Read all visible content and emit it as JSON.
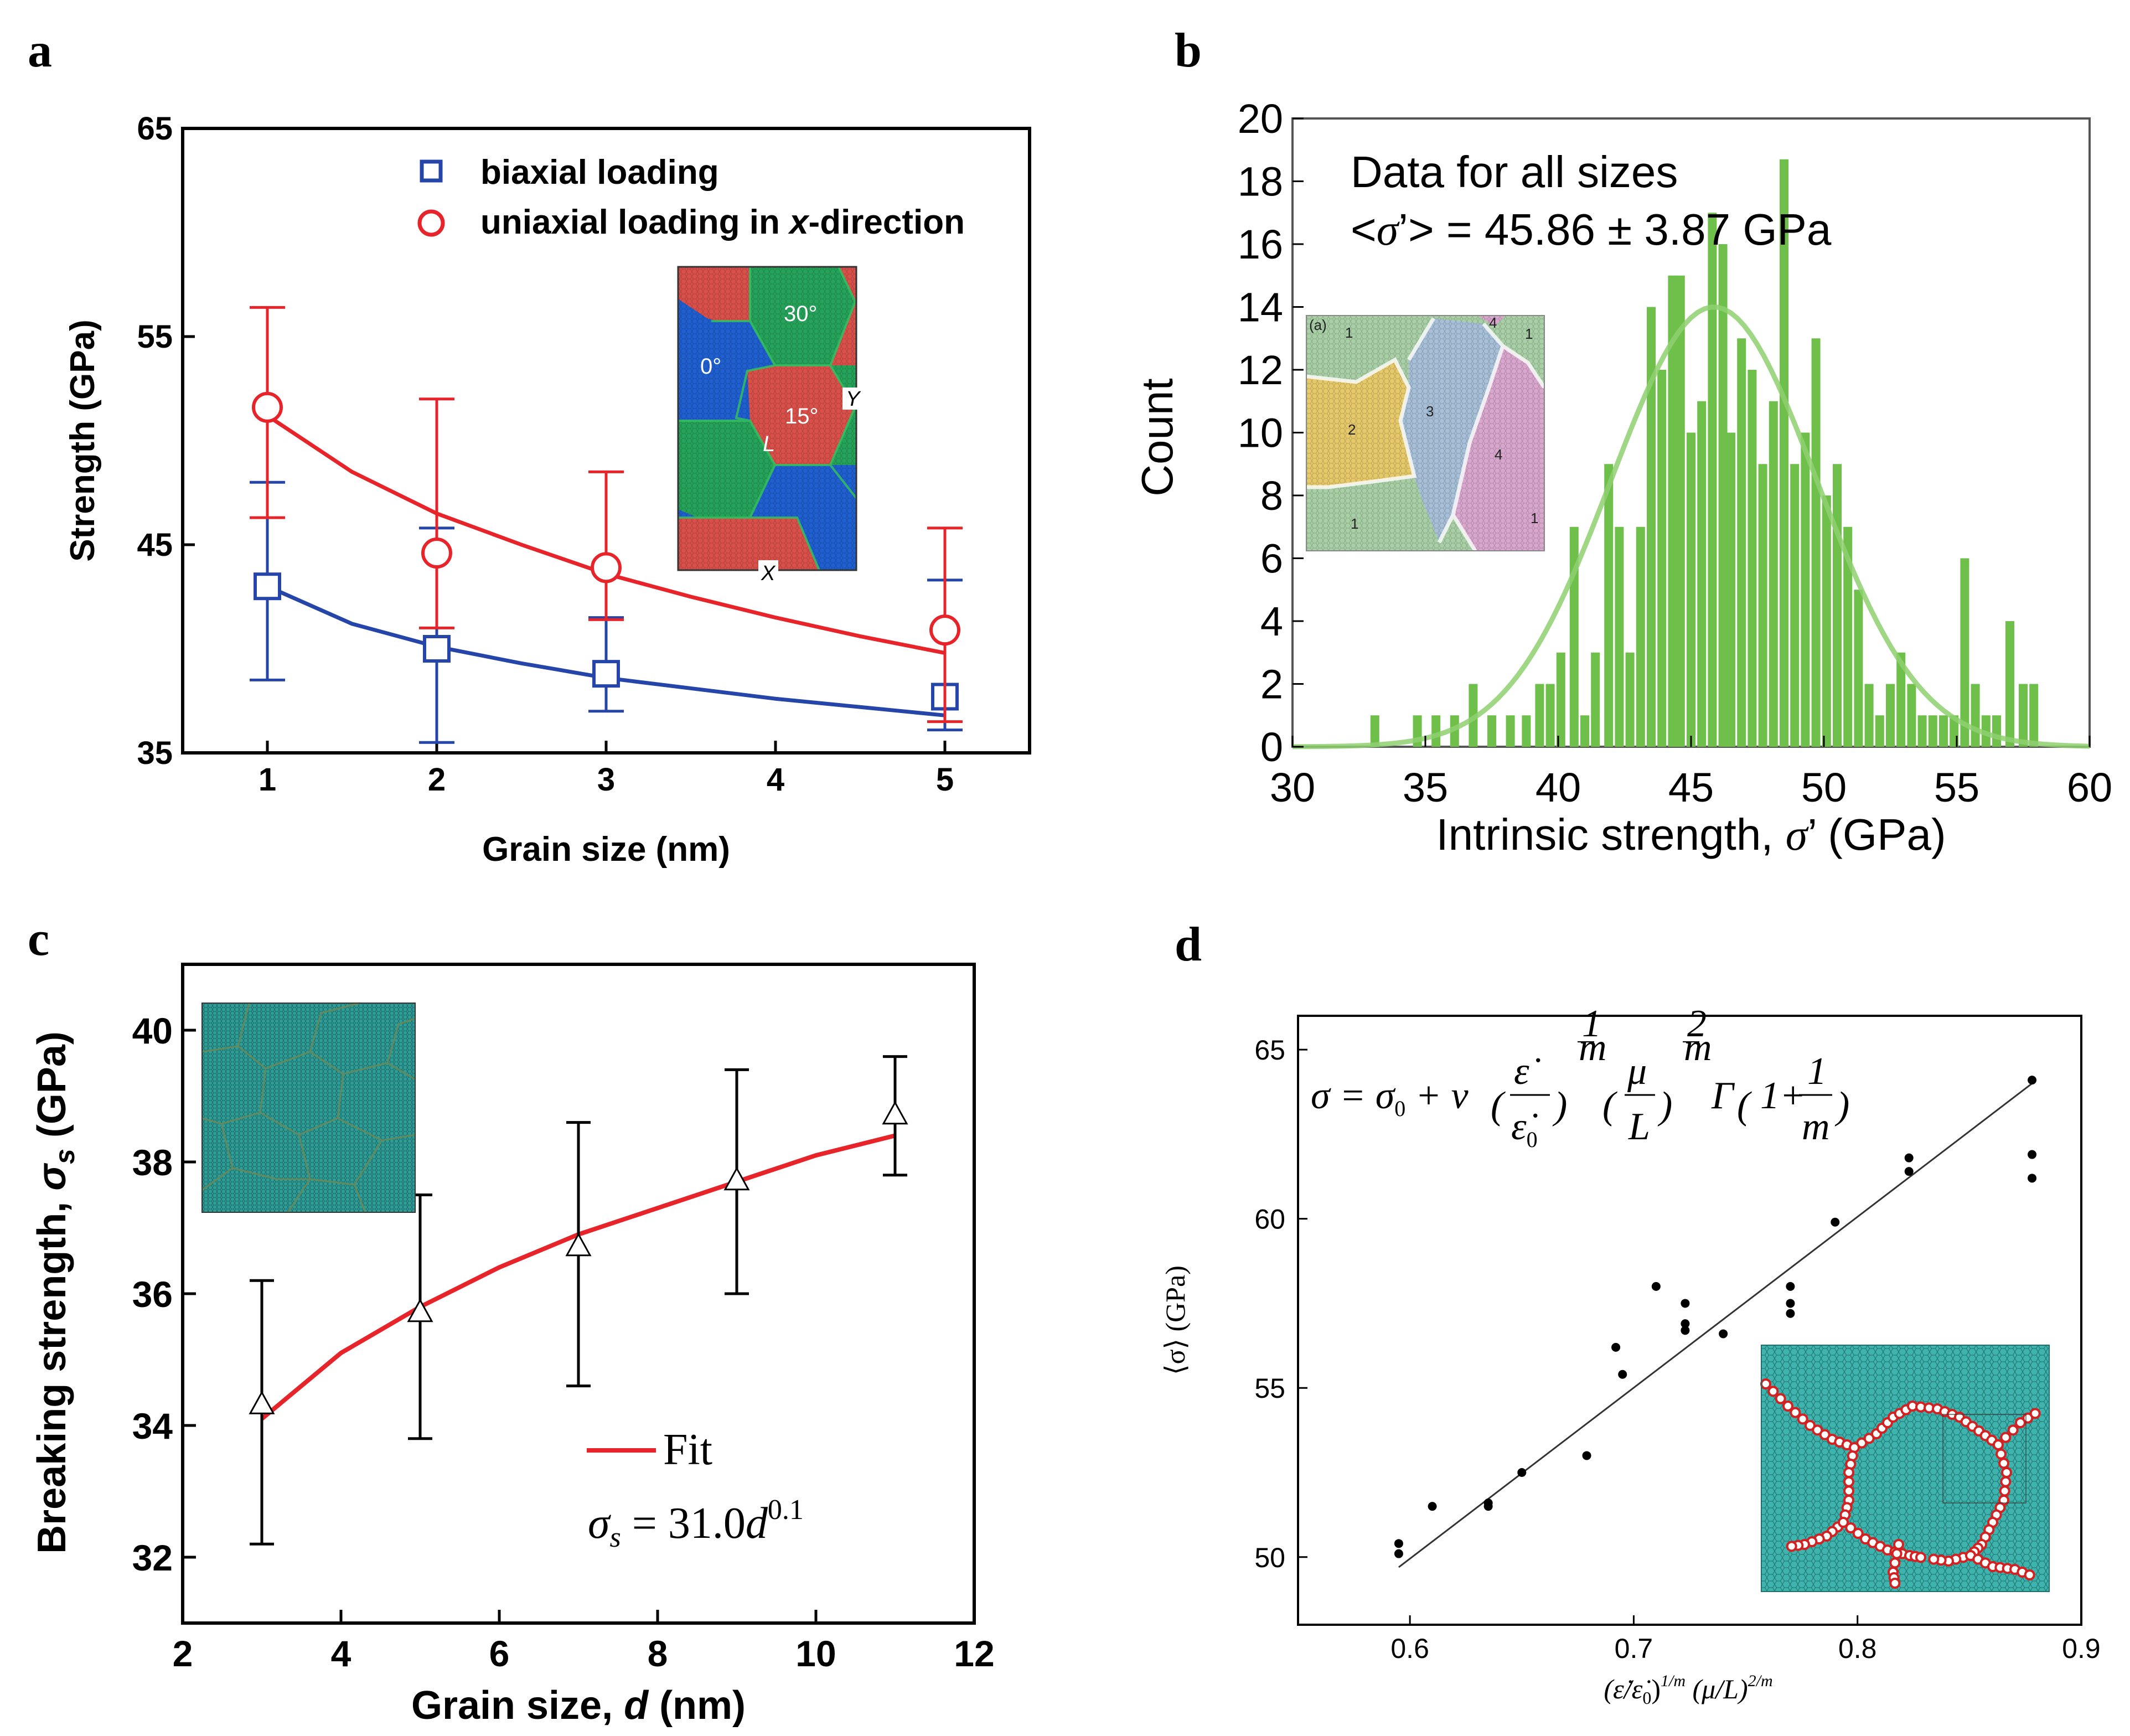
{
  "panels": {
    "a": "a",
    "b": "b",
    "c": "c",
    "d": "d"
  },
  "colors": {
    "red": "#e8242b",
    "blue": "#2545a8",
    "green": "#6fc04a",
    "black": "#000000",
    "teal": "#2aa8a0"
  },
  "panel_a": {
    "xlabel": "Grain size (nm)",
    "ylabel": "Strength (GPa)",
    "legend": {
      "biaxial": "biaxial loading",
      "uniaxial_pre": "uniaxial loading in ",
      "uniaxial_x": "x",
      "uniaxial_post": "-direction"
    },
    "inset": {
      "a30": "30°",
      "a0": "0°",
      "a15": "15°",
      "L": "L",
      "Y": "Y",
      "X": "X"
    }
  },
  "panel_b": {
    "annotation1": "Data for all sizes",
    "annotation2_pre": "<",
    "annotation2_sigma": "σ",
    "annotation2_post": "’> = 45.86 ± 3.87 GPa",
    "xlabel_pre": "Intrinsic strength, ",
    "xlabel_sigma": "σ",
    "xlabel_post": "’ (GPa)",
    "ylabel": "Count",
    "inset": {
      "n1a": "1",
      "n1b": "1",
      "n1c": "1",
      "n1d": "1",
      "n2": "2",
      "n3": "3",
      "n4a": "4",
      "n4b": "4",
      "tag": "(a)"
    }
  },
  "panel_c": {
    "xlabel_pre": "Grain size, ",
    "xlabel_d": "d",
    "xlabel_post": " (nm)",
    "ylabel_pre": "Breaking strength, ",
    "ylabel_sigma": "σ",
    "ylabel_sub": "s",
    "ylabel_post": " (GPa)",
    "legend_fit": "Fit",
    "formula_sigma": "σ",
    "formula_sub": "s",
    "formula_mid": " = 31.0",
    "formula_d": "d",
    "formula_exp": "0.1"
  },
  "panel_d": {
    "ylabel": "⟨σ⟩ (GPa)",
    "xlabel": "(ε̇/ε̇₀)^{1/m} (μ/L)^{2/m}",
    "xlabel_a": "(ε̇/ε̇",
    "xlabel_b": "0",
    "xlabel_c": ")",
    "xlabel_d": "1/m",
    "xlabel_e": " (μ/L)",
    "xlabel_f": "2/m",
    "equation": "σ = σ0 + v (ε̇/ε̇0)^(1/m) (μ/L)^(2/m) Γ(1 + 1/m)",
    "eq_sigma": "σ = σ",
    "eq_0": "0",
    "eq_plus_v": " + v",
    "eq_eps": "ε̇",
    "eq_eps0": "ε̇",
    "eq_e0sub": "0",
    "eq_1m_n": "1",
    "eq_1m_d": "m",
    "eq_mu": "μ",
    "eq_L": "L",
    "eq_2m_n": "2",
    "eq_2m_d": "m",
    "eq_gamma": "Γ",
    "eq_one_plus": "1+",
    "eq_frac_n": "1",
    "eq_frac_d": "m"
  },
  "chart_data": [
    {
      "id": "a",
      "type": "line",
      "xlabel": "Grain size (nm)",
      "ylabel": "Strength (GPa)",
      "xlim": [
        0.5,
        5.5
      ],
      "ylim": [
        35,
        65
      ],
      "xticks": [
        1,
        2,
        3,
        4,
        5
      ],
      "yticks": [
        35,
        45,
        55,
        65
      ],
      "series": [
        {
          "name": "biaxial loading",
          "marker": "square",
          "color": "#2545a8",
          "points": [
            {
              "x": 1,
              "y": 43.0,
              "lo": 38.5,
              "hi": 48.0
            },
            {
              "x": 2,
              "y": 40.0,
              "lo": 35.5,
              "hi": 45.8
            },
            {
              "x": 3,
              "y": 38.8,
              "lo": 37.0,
              "hi": 41.5
            },
            {
              "x": 5,
              "y": 37.7,
              "lo": 36.1,
              "hi": 43.3
            }
          ],
          "fit": [
            [
              1,
              43.0
            ],
            [
              1.5,
              41.2
            ],
            [
              2,
              40.1
            ],
            [
              2.5,
              39.3
            ],
            [
              3,
              38.6
            ],
            [
              3.5,
              38.1
            ],
            [
              4,
              37.6
            ],
            [
              4.5,
              37.2
            ],
            [
              5,
              36.8
            ]
          ]
        },
        {
          "name": "uniaxial loading in x-direction",
          "marker": "circle",
          "color": "#e8242b",
          "points": [
            {
              "x": 1,
              "y": 51.6,
              "lo": 46.3,
              "hi": 56.4
            },
            {
              "x": 2,
              "y": 44.6,
              "lo": 41.0,
              "hi": 52.0
            },
            {
              "x": 3,
              "y": 43.9,
              "lo": 41.4,
              "hi": 48.5
            },
            {
              "x": 5,
              "y": 40.9,
              "lo": 36.5,
              "hi": 45.8
            }
          ],
          "fit": [
            [
              1,
              51.2
            ],
            [
              1.5,
              48.5
            ],
            [
              2,
              46.5
            ],
            [
              2.5,
              45.0
            ],
            [
              3,
              43.6
            ],
            [
              3.5,
              42.5
            ],
            [
              4,
              41.5
            ],
            [
              4.5,
              40.6
            ],
            [
              5,
              39.8
            ]
          ]
        }
      ]
    },
    {
      "id": "b",
      "type": "bar",
      "title": "Data for all sizes",
      "xlabel": "Intrinsic strength, σ’ (GPa)",
      "ylabel": "Count",
      "xlim": [
        30,
        60
      ],
      "ylim": [
        0,
        20
      ],
      "xticks": [
        30,
        35,
        40,
        45,
        50,
        55,
        60
      ],
      "yticks": [
        0,
        2,
        4,
        6,
        8,
        10,
        12,
        14,
        16,
        18,
        20
      ],
      "mean": 45.86,
      "std": 3.87,
      "bins": [
        [
          33.1,
          1
        ],
        [
          34.7,
          1
        ],
        [
          35.4,
          1
        ],
        [
          36.1,
          1
        ],
        [
          36.8,
          2
        ],
        [
          37.5,
          1
        ],
        [
          38.2,
          1
        ],
        [
          38.8,
          1
        ],
        [
          39.3,
          2
        ],
        [
          39.7,
          2
        ],
        [
          40.1,
          3
        ],
        [
          40.6,
          7
        ],
        [
          41.0,
          1
        ],
        [
          41.4,
          3
        ],
        [
          41.9,
          9
        ],
        [
          42.3,
          7
        ],
        [
          42.7,
          3
        ],
        [
          43.1,
          7
        ],
        [
          43.5,
          14
        ],
        [
          43.9,
          12
        ],
        [
          44.3,
          15
        ],
        [
          44.6,
          15
        ],
        [
          45.0,
          10
        ],
        [
          45.4,
          11
        ],
        [
          45.8,
          17
        ],
        [
          46.2,
          16
        ],
        [
          46.5,
          10
        ],
        [
          46.9,
          13
        ],
        [
          47.3,
          12
        ],
        [
          47.7,
          9
        ],
        [
          48.1,
          11
        ],
        [
          48.5,
          18.7
        ],
        [
          48.9,
          9
        ],
        [
          49.3,
          10
        ],
        [
          49.7,
          13
        ],
        [
          50.1,
          8
        ],
        [
          50.5,
          9
        ],
        [
          50.9,
          7
        ],
        [
          51.3,
          5
        ],
        [
          51.7,
          2
        ],
        [
          52.1,
          1
        ],
        [
          52.5,
          2
        ],
        [
          52.9,
          3
        ],
        [
          53.3,
          2
        ],
        [
          53.7,
          1
        ],
        [
          54.1,
          1
        ],
        [
          54.5,
          1
        ],
        [
          54.9,
          1
        ],
        [
          55.3,
          6
        ],
        [
          55.7,
          2
        ],
        [
          56.1,
          1
        ],
        [
          56.5,
          1
        ],
        [
          57.0,
          4
        ],
        [
          57.5,
          2
        ],
        [
          57.9,
          2
        ]
      ]
    },
    {
      "id": "c",
      "type": "line",
      "xlabel": "Grain size, d (nm)",
      "ylabel": "Breaking strength, σs (GPa)",
      "xlim": [
        2,
        12
      ],
      "ylim": [
        31,
        41
      ],
      "xticks": [
        2,
        4,
        6,
        8,
        10,
        12
      ],
      "yticks": [
        32,
        34,
        36,
        38,
        40
      ],
      "points": [
        {
          "x": 3,
          "y": 34.3,
          "lo": 32.2,
          "hi": 36.2
        },
        {
          "x": 5,
          "y": 35.7,
          "lo": 33.8,
          "hi": 37.5
        },
        {
          "x": 7,
          "y": 36.7,
          "lo": 34.6,
          "hi": 38.6
        },
        {
          "x": 9,
          "y": 37.7,
          "lo": 36.0,
          "hi": 39.4
        },
        {
          "x": 11,
          "y": 38.7,
          "lo": 37.8,
          "hi": 39.6
        }
      ],
      "fit": {
        "label": "Fit",
        "formula": "σs = 31.0d^0.1",
        "curve": [
          [
            3,
            34.1
          ],
          [
            4,
            35.1
          ],
          [
            5,
            35.8
          ],
          [
            6,
            36.4
          ],
          [
            7,
            36.9
          ],
          [
            8,
            37.3
          ],
          [
            9,
            37.7
          ],
          [
            10,
            38.1
          ],
          [
            11,
            38.4
          ]
        ]
      }
    },
    {
      "id": "d",
      "type": "scatter",
      "xlabel": "(ε̇/ε̇0)^1/m (μ/L)^2/m",
      "ylabel": "⟨σ⟩ (GPa)",
      "xlim": [
        0.55,
        0.9
      ],
      "ylim": [
        48,
        66
      ],
      "xticks": [
        0.6,
        0.7,
        0.8,
        0.9
      ],
      "xtick_labels": [
        "0.6",
        "0.7",
        "0.8",
        "0.9"
      ],
      "yticks": [
        50,
        55,
        60,
        65
      ],
      "points": [
        [
          0.595,
          50.4
        ],
        [
          0.595,
          50.1
        ],
        [
          0.61,
          51.5
        ],
        [
          0.635,
          51.5
        ],
        [
          0.635,
          51.6
        ],
        [
          0.65,
          52.5
        ],
        [
          0.679,
          53.0
        ],
        [
          0.692,
          56.2
        ],
        [
          0.695,
          55.4
        ],
        [
          0.71,
          58.0
        ],
        [
          0.723,
          57.5
        ],
        [
          0.723,
          56.9
        ],
        [
          0.723,
          56.7
        ],
        [
          0.74,
          56.6
        ],
        [
          0.77,
          58.0
        ],
        [
          0.77,
          57.5
        ],
        [
          0.77,
          57.2
        ],
        [
          0.79,
          59.9
        ],
        [
          0.823,
          61.8
        ],
        [
          0.823,
          61.4
        ],
        [
          0.878,
          64.1
        ],
        [
          0.878,
          61.9
        ],
        [
          0.878,
          61.2
        ]
      ],
      "fit_line": [
        [
          0.595,
          49.7
        ],
        [
          0.878,
          64.0
        ]
      ]
    }
  ]
}
